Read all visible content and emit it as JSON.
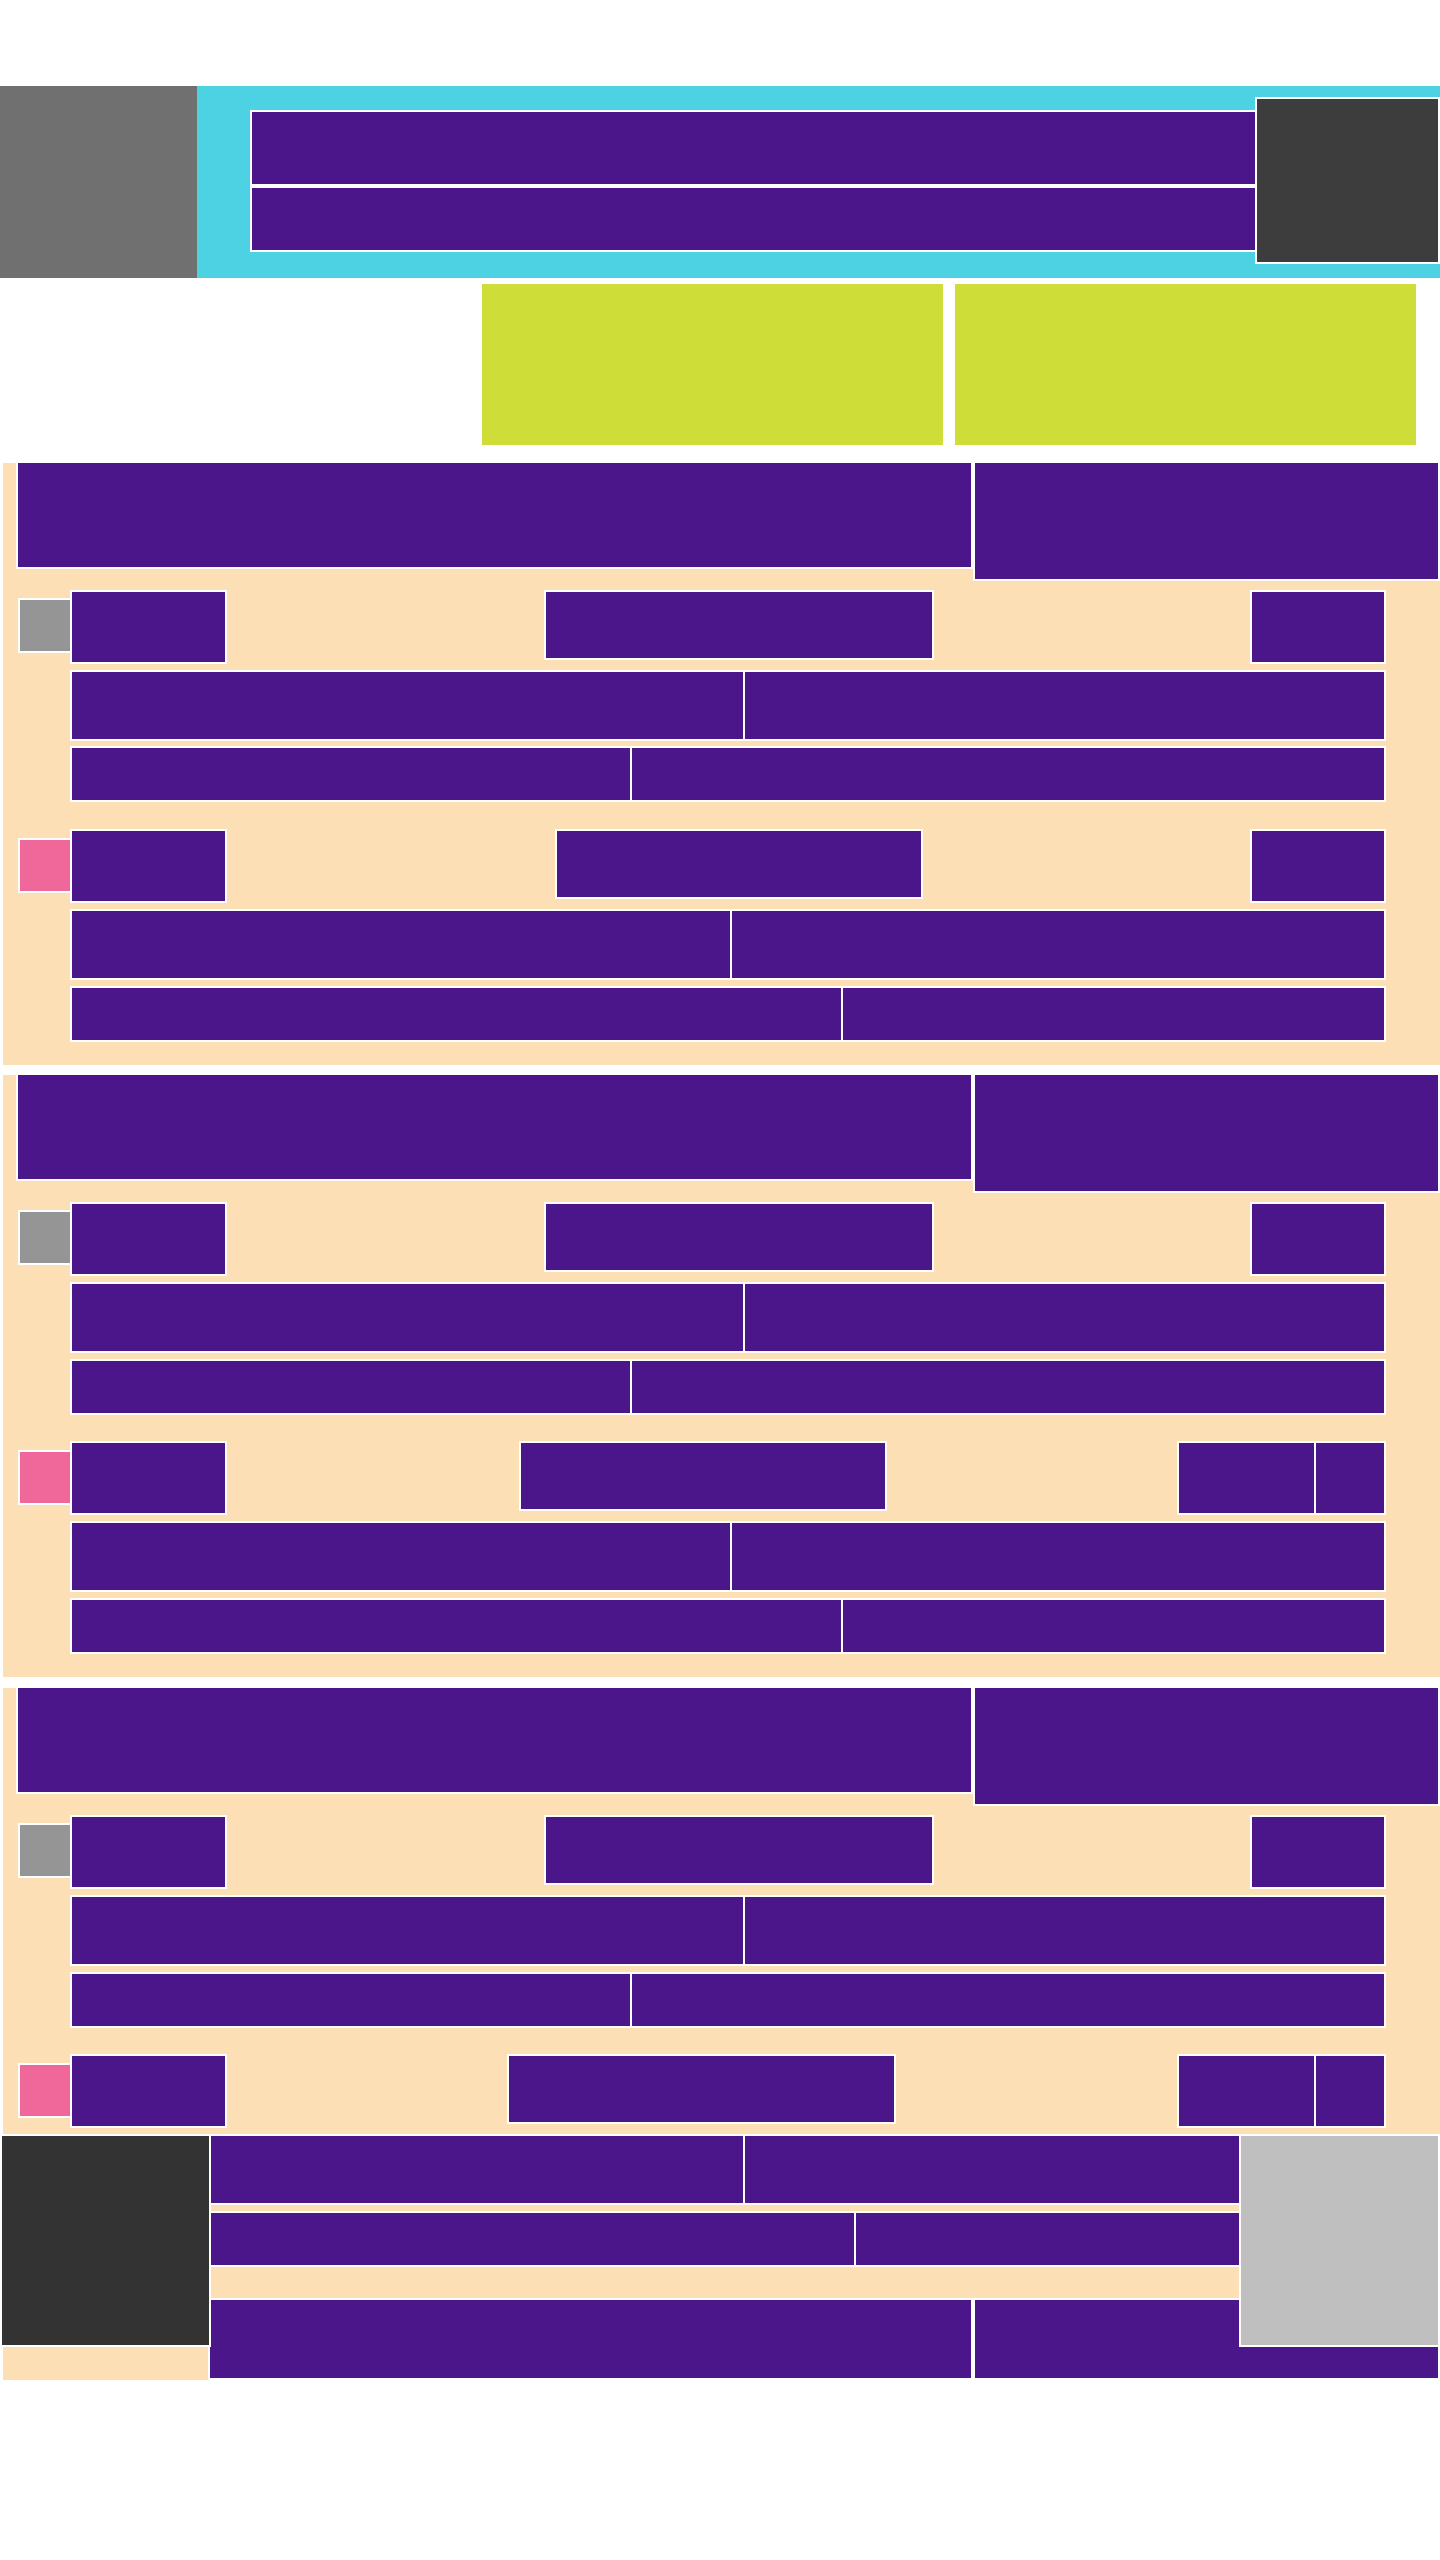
{
  "colors": {
    "background": "#ffffff",
    "header_bar": "#4dd2e4",
    "header_left_block": "#707070",
    "header_right_block": "#3d3d3d",
    "primary_block": "#4a168a",
    "tab_block": "#cfdd38",
    "section_background": "#fddfb5",
    "status_neutral": "#959595",
    "status_alert": "#f0689a",
    "overlay_dark": "#333333",
    "overlay_light": "#bfbfbf"
  },
  "header": {
    "logo_icon": "image-placeholder",
    "title": "",
    "subtitle": "",
    "menu_icon": "menu-icon"
  },
  "tabs": [
    {
      "label": ""
    },
    {
      "label": ""
    }
  ],
  "sections": [
    {
      "title": "",
      "action_label": "",
      "items": [
        {
          "status": "neutral",
          "col1": "",
          "col2": "",
          "col3": "",
          "row2a": "",
          "row2b": "",
          "row3a": "",
          "row3b": ""
        },
        {
          "status": "alert",
          "col1": "",
          "col2": "",
          "col3": "",
          "row2a": "",
          "row2b": "",
          "row3a": "",
          "row3b": ""
        }
      ]
    },
    {
      "title": "",
      "action_label": "",
      "items": [
        {
          "status": "neutral",
          "col1": "",
          "col2": "",
          "col3": "",
          "row2a": "",
          "row2b": "",
          "row3a": "",
          "row3b": ""
        },
        {
          "status": "alert",
          "col1": "",
          "col2": "",
          "col3": "",
          "col4": "",
          "row2a": "",
          "row2b": "",
          "row3a": "",
          "row3b": ""
        }
      ]
    },
    {
      "title": "",
      "action_label": "",
      "items": [
        {
          "status": "neutral",
          "col1": "",
          "col2": "",
          "col3": "",
          "row2a": "",
          "row2b": "",
          "row3a": "",
          "row3b": ""
        },
        {
          "status": "alert",
          "col1": "",
          "col2": "",
          "col3": "",
          "col4": "",
          "row2a": "",
          "row2b": "",
          "row3a": "",
          "row3b": ""
        }
      ]
    },
    {
      "title": "",
      "action_label": ""
    }
  ],
  "overlay": {
    "left_icon": "dark-panel",
    "right_icon": "light-panel"
  }
}
